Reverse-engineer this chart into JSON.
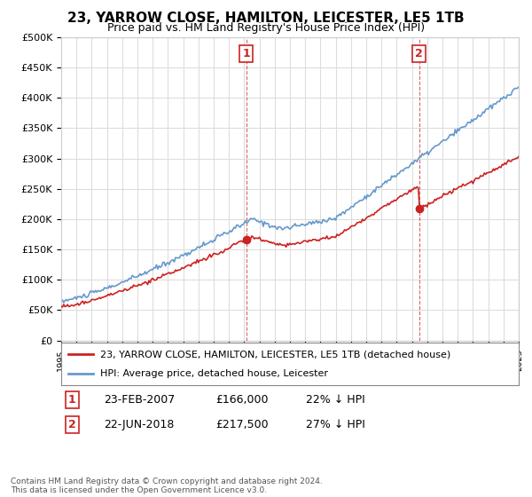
{
  "title": "23, YARROW CLOSE, HAMILTON, LEICESTER, LE5 1TB",
  "subtitle": "Price paid vs. HM Land Registry's House Price Index (HPI)",
  "footnote": "Contains HM Land Registry data © Crown copyright and database right 2024.\nThis data is licensed under the Open Government Licence v3.0.",
  "legend_line1": "23, YARROW CLOSE, HAMILTON, LEICESTER, LE5 1TB (detached house)",
  "legend_line2": "HPI: Average price, detached house, Leicester",
  "sale1_label": "1",
  "sale1_date": "23-FEB-2007",
  "sale1_price": "£166,000",
  "sale1_hpi": "22% ↓ HPI",
  "sale1_year": 2007.14,
  "sale1_value": 166000,
  "sale2_label": "2",
  "sale2_date": "22-JUN-2018",
  "sale2_price": "£217,500",
  "sale2_hpi": "27% ↓ HPI",
  "sale2_year": 2018.47,
  "sale2_value": 217500,
  "hpi_color": "#6699cc",
  "price_color": "#cc2222",
  "marker_color": "#cc2222",
  "dashed_line_color": "#cc2222",
  "background_color": "#ffffff",
  "grid_color": "#dddddd",
  "ylim": [
    0,
    500000
  ],
  "xlim_start": 1995,
  "xlim_end": 2025
}
